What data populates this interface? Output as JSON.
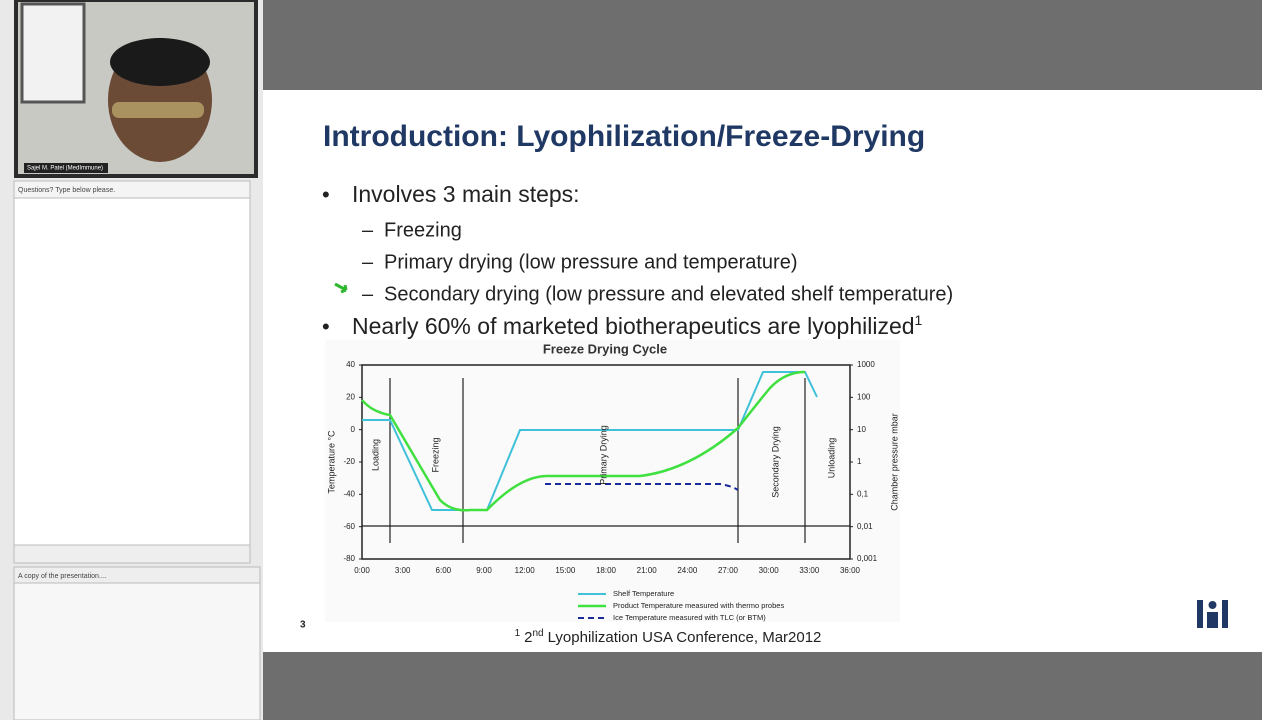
{
  "video": {
    "caption": "Sajel M. Patel (MedImmune)"
  },
  "questions": {
    "label": "Questions? Type below please."
  },
  "handout": {
    "label": "A copy of the presentation...."
  },
  "slide": {
    "title": "Introduction: Lyophilization/Freeze-Drying",
    "bullets": [
      {
        "text": "Involves 3 main steps:",
        "sub": [
          "Freezing",
          "Primary drying (low pressure and temperature)",
          "Secondary drying (low pressure and elevated shelf temperature)"
        ]
      },
      {
        "text": "Nearly 60% of marketed biotherapeutics are lyophilized",
        "sup": "1"
      }
    ],
    "figure": {
      "title": "Freeze Drying Cycle",
      "y_label": "Temperature °C",
      "y2_label": "Chamber pressure mbar",
      "yticks": [
        40,
        20,
        0,
        -20,
        -40,
        -60,
        -80
      ],
      "y2ticks": [
        1000,
        100,
        10,
        1,
        {
          "value": 0.1,
          "label": "0,1"
        },
        {
          "value": 0.01,
          "label": "0,01"
        },
        {
          "value": 0.001,
          "label": "0,001"
        }
      ],
      "xticks": [
        "0:00",
        "3:00",
        "6:00",
        "9:00",
        "12:00",
        "15:00",
        "18:00",
        "21:00",
        "24:00",
        "27:00",
        "30:00",
        "33:00",
        "36:00"
      ],
      "phases": [
        "Loading",
        "Freezing",
        "Primary Drying",
        "Secondary Drying",
        "Unloading"
      ],
      "legend": [
        "Shelf Temperature",
        "Product Temperature measured with thermo probes",
        "Ice Temperature measured with TLC (or BTM)"
      ]
    },
    "footnote": {
      "sup": "1",
      "ordinal": "2",
      "ordinal_sup": "nd",
      "text": "Lyophilization USA Conference, Mar2012"
    },
    "page_number": "3"
  }
}
